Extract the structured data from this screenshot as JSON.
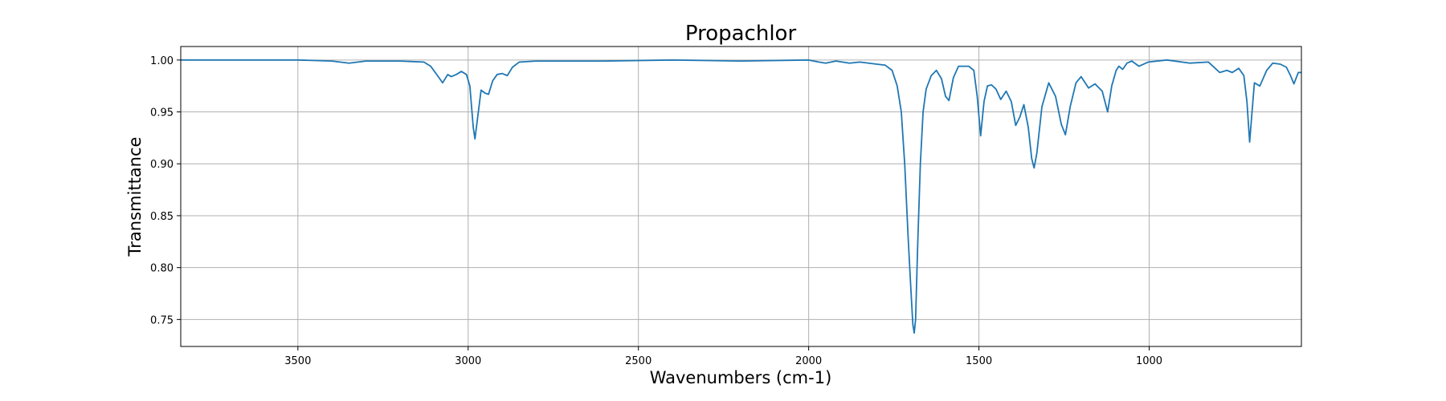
{
  "chart_data": {
    "type": "line",
    "title": "Propachlor",
    "x_label": "Wavenumbers (cm-1)",
    "y_label": "Transmittance",
    "grid": true,
    "xlim": [
      3844,
      553
    ],
    "ylim": [
      0.724,
      1.013
    ],
    "xticks": [
      3500,
      3000,
      2500,
      2000,
      1500,
      1000
    ],
    "yticks": [
      {
        "value": 0.75,
        "label": "0.75"
      },
      {
        "value": 0.8,
        "label": "0.80"
      },
      {
        "value": 0.85,
        "label": "0.85"
      },
      {
        "value": 0.9,
        "label": "0.90"
      },
      {
        "value": 0.95,
        "label": "0.95"
      },
      {
        "value": 1.0,
        "label": "1.00"
      }
    ],
    "x": [
      3844,
      3700,
      3500,
      3400,
      3350,
      3300,
      3200,
      3130,
      3110,
      3090,
      3075,
      3060,
      3050,
      3035,
      3020,
      3005,
      2995,
      2985,
      2980,
      2972,
      2962,
      2950,
      2940,
      2928,
      2915,
      2900,
      2885,
      2870,
      2850,
      2800,
      2600,
      2400,
      2200,
      2000,
      1970,
      1950,
      1920,
      1880,
      1850,
      1800,
      1775,
      1755,
      1740,
      1728,
      1718,
      1708,
      1700,
      1694,
      1690,
      1686,
      1680,
      1672,
      1664,
      1655,
      1640,
      1625,
      1610,
      1598,
      1588,
      1575,
      1560,
      1530,
      1515,
      1505,
      1495,
      1485,
      1475,
      1463,
      1450,
      1436,
      1420,
      1405,
      1392,
      1380,
      1368,
      1355,
      1345,
      1338,
      1330,
      1315,
      1295,
      1275,
      1258,
      1246,
      1232,
      1215,
      1200,
      1178,
      1159,
      1138,
      1122,
      1110,
      1097,
      1089,
      1078,
      1065,
      1051,
      1030,
      1003,
      948,
      880,
      826,
      793,
      772,
      756,
      737,
      722,
      713,
      705,
      698,
      691,
      675,
      655,
      637,
      615,
      597,
      585,
      575,
      562,
      553
    ],
    "series": [
      {
        "name": "Propachlor",
        "color": "#1f77b4",
        "axis": "y",
        "values": [
          1.0,
          1.0,
          1.0,
          0.999,
          0.997,
          0.999,
          0.999,
          0.998,
          0.994,
          0.985,
          0.978,
          0.986,
          0.984,
          0.986,
          0.989,
          0.986,
          0.975,
          0.935,
          0.924,
          0.945,
          0.971,
          0.968,
          0.967,
          0.98,
          0.986,
          0.987,
          0.985,
          0.993,
          0.998,
          0.999,
          0.999,
          1.0,
          0.999,
          1.0,
          0.998,
          0.997,
          0.999,
          0.997,
          0.998,
          0.996,
          0.995,
          0.99,
          0.975,
          0.95,
          0.9,
          0.83,
          0.78,
          0.745,
          0.737,
          0.75,
          0.82,
          0.9,
          0.95,
          0.972,
          0.985,
          0.99,
          0.982,
          0.965,
          0.961,
          0.983,
          0.994,
          0.994,
          0.99,
          0.965,
          0.927,
          0.96,
          0.975,
          0.976,
          0.972,
          0.962,
          0.97,
          0.96,
          0.937,
          0.945,
          0.957,
          0.935,
          0.905,
          0.896,
          0.91,
          0.955,
          0.978,
          0.965,
          0.938,
          0.928,
          0.955,
          0.978,
          0.984,
          0.973,
          0.977,
          0.97,
          0.95,
          0.975,
          0.99,
          0.994,
          0.991,
          0.997,
          0.999,
          0.994,
          0.998,
          1.0,
          0.997,
          0.998,
          0.988,
          0.99,
          0.988,
          0.992,
          0.985,
          0.96,
          0.921,
          0.95,
          0.978,
          0.975,
          0.99,
          0.997,
          0.996,
          0.993,
          0.985,
          0.977,
          0.988,
          0.988
        ]
      }
    ]
  }
}
